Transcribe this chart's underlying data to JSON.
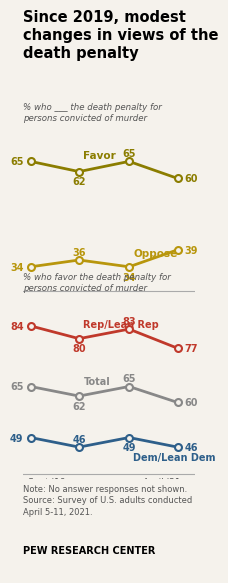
{
  "title": "Since 2019, modest\nchanges in views of the\ndeath penalty",
  "title_fontsize": 10.5,
  "bg_color": "#f5f2ec",
  "chart1_subtitle": "% who ___ the death penalty for\npersons convicted of murder",
  "chart2_subtitle": "% who favor the death penalty for\npersons convicted of murder",
  "chart1": {
    "favor": {
      "values": [
        65,
        62,
        65,
        60
      ],
      "x": [
        0,
        0.33,
        0.67,
        1
      ],
      "color": "#8b7d00",
      "label": "Favor"
    },
    "oppose": {
      "values": [
        34,
        36,
        34,
        39
      ],
      "x": [
        0,
        0.33,
        0.67,
        1
      ],
      "color": "#b8960c",
      "label": "Oppose"
    }
  },
  "chart2": {
    "rep": {
      "values": [
        84,
        80,
        83,
        77
      ],
      "x": [
        0,
        0.33,
        0.67,
        1
      ],
      "color": "#c0392b",
      "label": "Rep/Lean Rep"
    },
    "total": {
      "values": [
        65,
        62,
        65,
        60
      ],
      "x": [
        0,
        0.33,
        0.67,
        1
      ],
      "color": "#888888",
      "label": "Total"
    },
    "dem": {
      "values": [
        49,
        46,
        49,
        46
      ],
      "x": [
        0,
        0.33,
        0.67,
        1
      ],
      "color": "#2e5f8a",
      "label": "Dem/Lean Dem"
    }
  },
  "note": "Note: No answer responses not shown.\nSource: Survey of U.S. adults conducted\nApril 5-11, 2021.",
  "footer": "PEW RESEARCH CENTER",
  "marker_size": 5,
  "linewidth": 2.0
}
